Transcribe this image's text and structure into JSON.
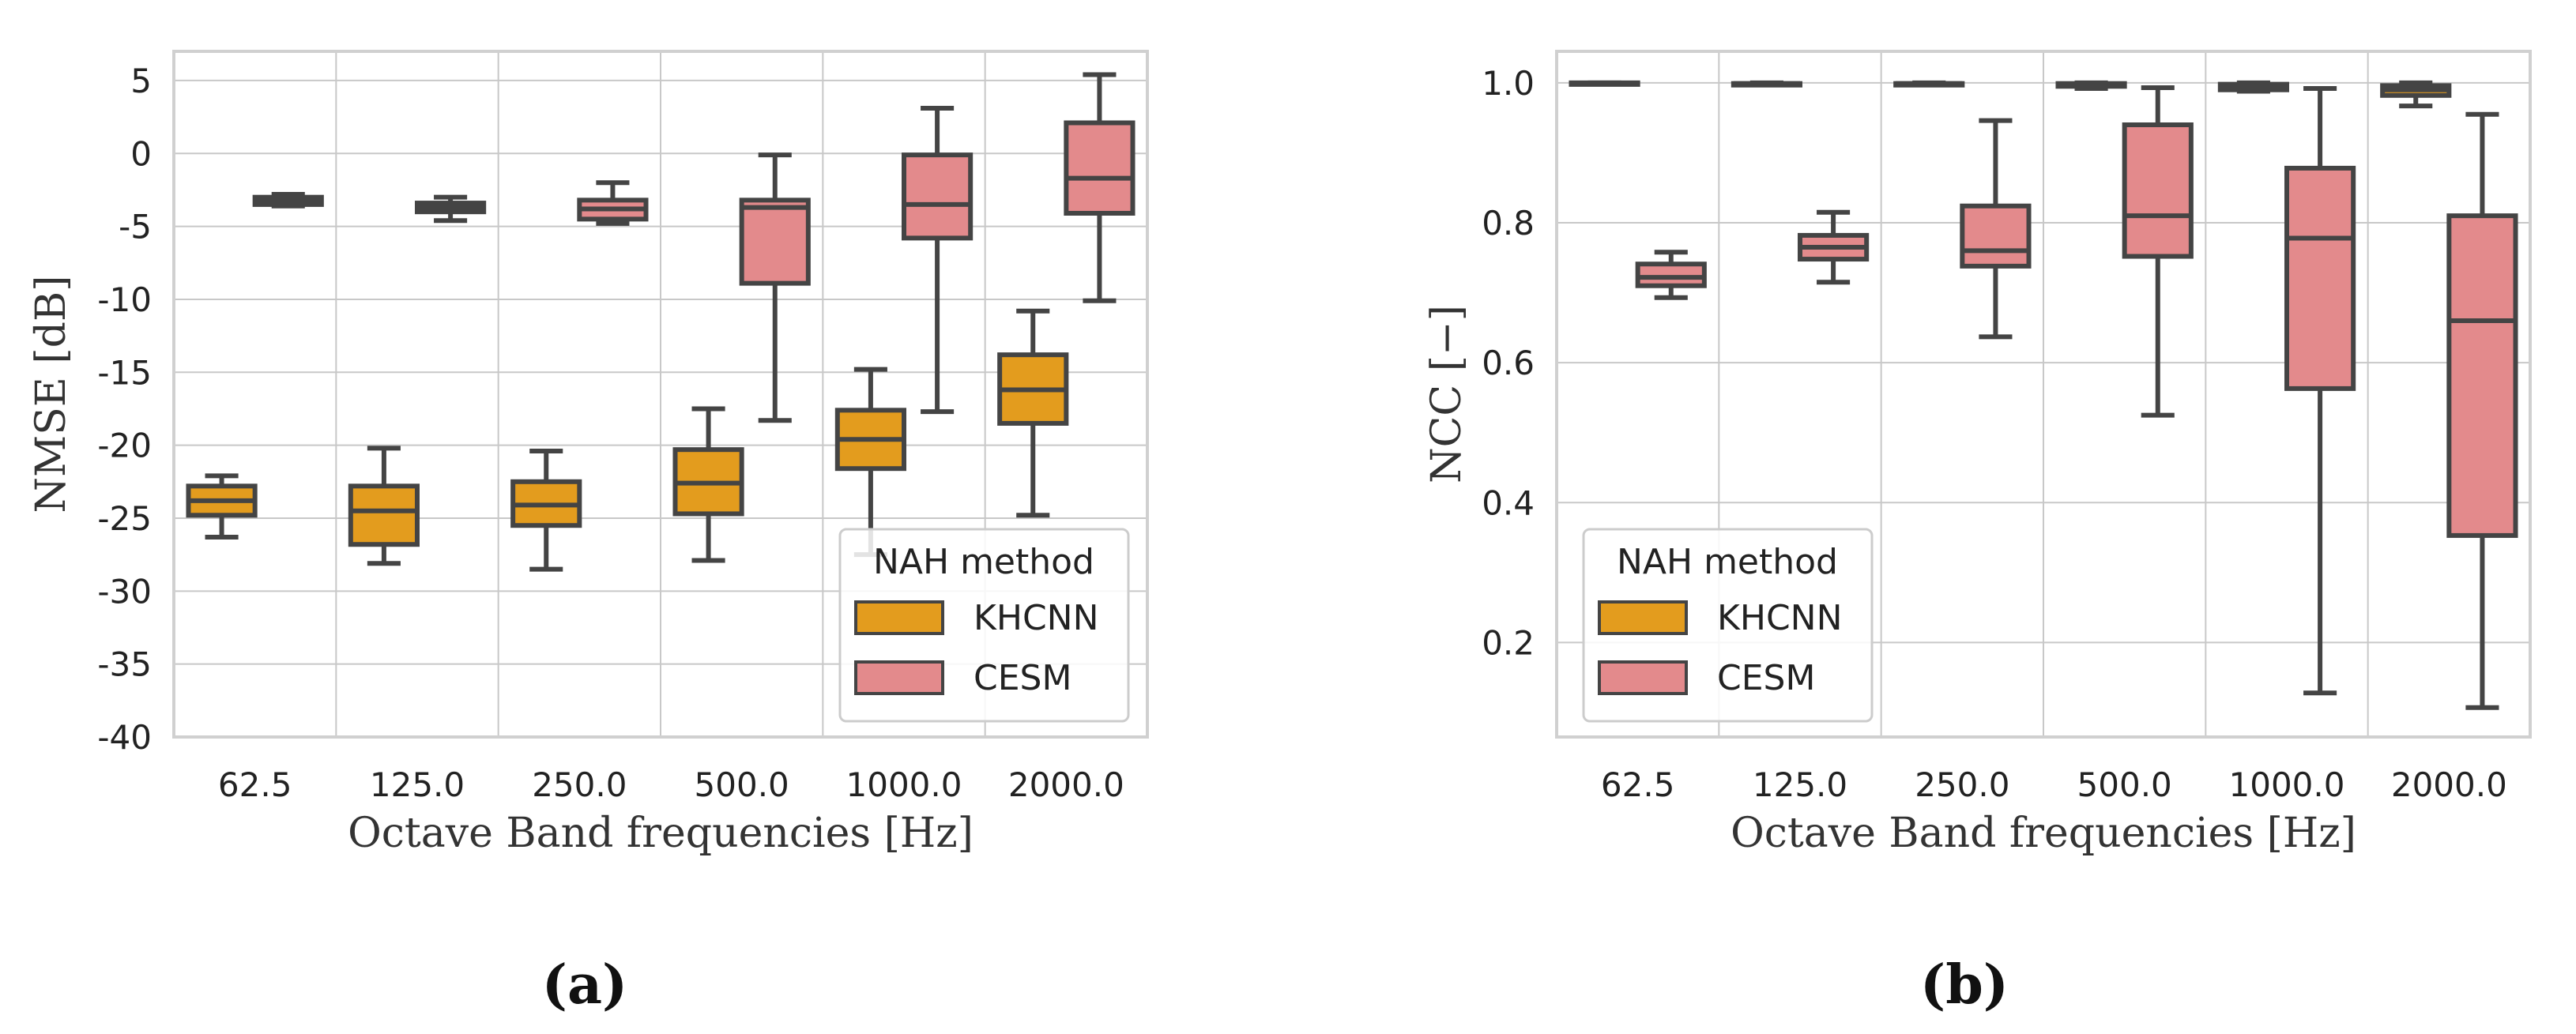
{
  "colors": {
    "KHCNN": "#e39c1e",
    "CESM": "#e38a8c",
    "line": "#444444"
  },
  "chart_data": [
    {
      "type": "box",
      "panel_label": "(a)",
      "xlabel": "Octave Band frequencies [Hz]",
      "ylabel": "NMSE [dB]",
      "ylim": [
        -40,
        7
      ],
      "yticks": [
        5,
        0,
        -5,
        -10,
        -15,
        -20,
        -25,
        -30,
        -35,
        -40
      ],
      "ytick_labels": [
        "5",
        "0",
        "-5",
        "-10",
        "-15",
        "-20",
        "-25",
        "-30",
        "-35",
        "-40"
      ],
      "categories": [
        "62.5",
        "125.0",
        "250.0",
        "500.0",
        "1000.0",
        "2000.0"
      ],
      "legend": {
        "title": "NAH method",
        "entries": [
          "KHCNN",
          "CESM"
        ],
        "placement": "lower-right"
      },
      "series": [
        {
          "name": "KHCNN",
          "boxes": [
            {
              "min": -26.3,
              "q1": -24.8,
              "median": -23.8,
              "q3": -22.8,
              "max": -22.1
            },
            {
              "min": -28.1,
              "q1": -26.8,
              "median": -24.5,
              "q3": -22.8,
              "max": -20.2
            },
            {
              "min": -28.5,
              "q1": -25.5,
              "median": -24.1,
              "q3": -22.5,
              "max": -20.4
            },
            {
              "min": -27.9,
              "q1": -24.7,
              "median": -22.6,
              "q3": -20.3,
              "max": -17.5
            },
            {
              "min": -27.5,
              "q1": -21.6,
              "median": -19.6,
              "q3": -17.6,
              "max": -14.8
            },
            {
              "min": -24.8,
              "q1": -18.5,
              "median": -16.2,
              "q3": -13.8,
              "max": -10.8
            }
          ]
        },
        {
          "name": "CESM",
          "boxes": [
            {
              "min": -3.6,
              "q1": -3.5,
              "median": -3.2,
              "q3": -3.0,
              "max": -2.8
            },
            {
              "min": -4.6,
              "q1": -4.0,
              "median": -3.7,
              "q3": -3.4,
              "max": -3.0
            },
            {
              "min": -4.8,
              "q1": -4.5,
              "median": -3.8,
              "q3": -3.2,
              "max": -2.0
            },
            {
              "min": -18.3,
              "q1": -8.9,
              "median": -3.7,
              "q3": -3.2,
              "max": -0.1
            },
            {
              "min": -17.7,
              "q1": -5.8,
              "median": -3.5,
              "q3": -0.1,
              "max": 3.1
            },
            {
              "min": -10.1,
              "q1": -4.1,
              "median": -1.7,
              "q3": 2.1,
              "max": 5.4
            }
          ]
        }
      ]
    },
    {
      "type": "box",
      "panel_label": "(b)",
      "xlabel": "Octave Band frequencies [Hz]",
      "ylabel": "NCC [−]",
      "ylim": [
        0.065,
        1.045
      ],
      "yticks": [
        1.0,
        0.8,
        0.6,
        0.4,
        0.2
      ],
      "ytick_labels": [
        "1.0",
        "0.8",
        "0.6",
        "0.4",
        "0.2"
      ],
      "categories": [
        "62.5",
        "125.0",
        "250.0",
        "500.0",
        "1000.0",
        "2000.0"
      ],
      "legend": {
        "title": "NAH method",
        "entries": [
          "KHCNN",
          "CESM"
        ],
        "placement": "lower-left"
      },
      "series": [
        {
          "name": "KHCNN",
          "boxes": [
            {
              "min": 0.999,
              "q1": 0.999,
              "median": 0.999,
              "q3": 1.0,
              "max": 1.0
            },
            {
              "min": 0.998,
              "q1": 0.998,
              "median": 0.999,
              "q3": 0.999,
              "max": 1.0
            },
            {
              "min": 0.998,
              "q1": 0.998,
              "median": 0.999,
              "q3": 0.999,
              "max": 1.0
            },
            {
              "min": 0.992,
              "q1": 0.995,
              "median": 0.997,
              "q3": 0.999,
              "max": 1.0
            },
            {
              "min": 0.988,
              "q1": 0.99,
              "median": 0.995,
              "q3": 0.998,
              "max": 1.0
            },
            {
              "min": 0.967,
              "q1": 0.982,
              "median": 0.99,
              "q3": 0.996,
              "max": 1.0
            }
          ]
        },
        {
          "name": "CESM",
          "boxes": [
            {
              "min": 0.693,
              "q1": 0.71,
              "median": 0.722,
              "q3": 0.741,
              "max": 0.758
            },
            {
              "min": 0.715,
              "q1": 0.748,
              "median": 0.765,
              "q3": 0.782,
              "max": 0.815
            },
            {
              "min": 0.637,
              "q1": 0.738,
              "median": 0.76,
              "q3": 0.824,
              "max": 0.946
            },
            {
              "min": 0.525,
              "q1": 0.752,
              "median": 0.81,
              "q3": 0.94,
              "max": 0.993
            },
            {
              "min": 0.128,
              "q1": 0.563,
              "median": 0.778,
              "q3": 0.878,
              "max": 0.992
            },
            {
              "min": 0.107,
              "q1": 0.353,
              "median": 0.66,
              "q3": 0.81,
              "max": 0.955
            }
          ]
        }
      ]
    }
  ]
}
